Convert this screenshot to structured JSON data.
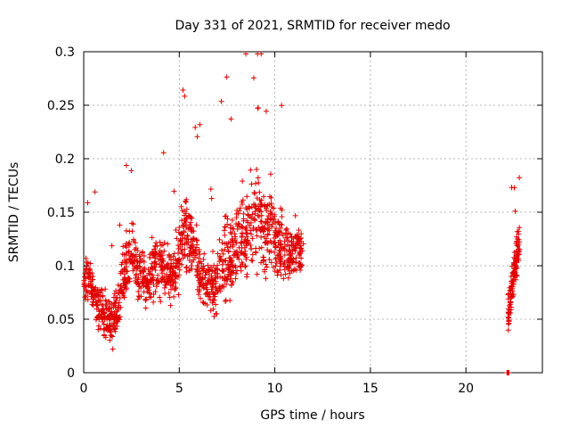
{
  "chart_data": {
    "type": "scatter",
    "title": "Day 331 of 2021, SRMTID for receiver medo",
    "xlabel": "GPS time / hours",
    "ylabel": "SRMTID / TECUs",
    "xlim": [
      0,
      24
    ],
    "ylim": [
      0,
      0.3
    ],
    "xticks": [
      "0",
      "5",
      "10",
      "15",
      "20"
    ],
    "yticks": [
      "0",
      "0.05",
      "0.1",
      "0.15",
      "0.2",
      "0.25",
      "0.3"
    ],
    "grid": true,
    "marker": "+",
    "marker_color": "#e00000",
    "segments": [
      {
        "x": [
          0.0,
          0.25,
          0.5,
          0.75,
          1.0,
          1.25,
          1.5,
          1.75,
          2.0,
          2.25,
          2.5,
          2.75,
          3.0,
          3.25,
          3.5,
          3.75,
          4.0,
          4.25,
          4.5,
          4.75,
          5.0,
          5.25,
          5.5,
          5.75,
          6.0,
          6.25,
          6.5,
          6.75,
          7.0,
          7.25,
          7.5,
          7.75,
          8.0,
          8.25,
          8.5,
          8.75,
          9.0,
          9.25,
          9.5,
          9.75,
          10.0,
          10.25,
          10.5,
          10.75,
          11.0,
          11.25,
          11.5
        ],
        "y": [
          0.085,
          0.095,
          0.075,
          0.065,
          0.06,
          0.055,
          0.05,
          0.06,
          0.08,
          0.1,
          0.11,
          0.1,
          0.09,
          0.085,
          0.09,
          0.1,
          0.1,
          0.095,
          0.09,
          0.09,
          0.11,
          0.13,
          0.13,
          0.115,
          0.1,
          0.09,
          0.08,
          0.08,
          0.085,
          0.1,
          0.11,
          0.115,
          0.12,
          0.125,
          0.13,
          0.14,
          0.15,
          0.14,
          0.13,
          0.135,
          0.13,
          0.12,
          0.11,
          0.11,
          0.115,
          0.12,
          0.11
        ],
        "spread": [
          0.03,
          0.03,
          0.03,
          0.03,
          0.03,
          0.035,
          0.03,
          0.03,
          0.04,
          0.045,
          0.045,
          0.04,
          0.035,
          0.035,
          0.04,
          0.04,
          0.04,
          0.04,
          0.035,
          0.04,
          0.05,
          0.05,
          0.045,
          0.04,
          0.045,
          0.04,
          0.035,
          0.04,
          0.045,
          0.05,
          0.055,
          0.06,
          0.06,
          0.06,
          0.065,
          0.065,
          0.07,
          0.06,
          0.055,
          0.055,
          0.05,
          0.045,
          0.045,
          0.04,
          0.04,
          0.035,
          0.03
        ]
      },
      {
        "x": [
          22.2,
          22.35,
          22.5,
          22.65,
          22.8
        ],
        "y": [
          0.05,
          0.07,
          0.09,
          0.11,
          0.125
        ],
        "spread": [
          0.025,
          0.03,
          0.03,
          0.03,
          0.02
        ]
      }
    ],
    "zero_points": [
      22.15,
      22.18,
      22.2,
      22.23,
      22.25
    ]
  }
}
